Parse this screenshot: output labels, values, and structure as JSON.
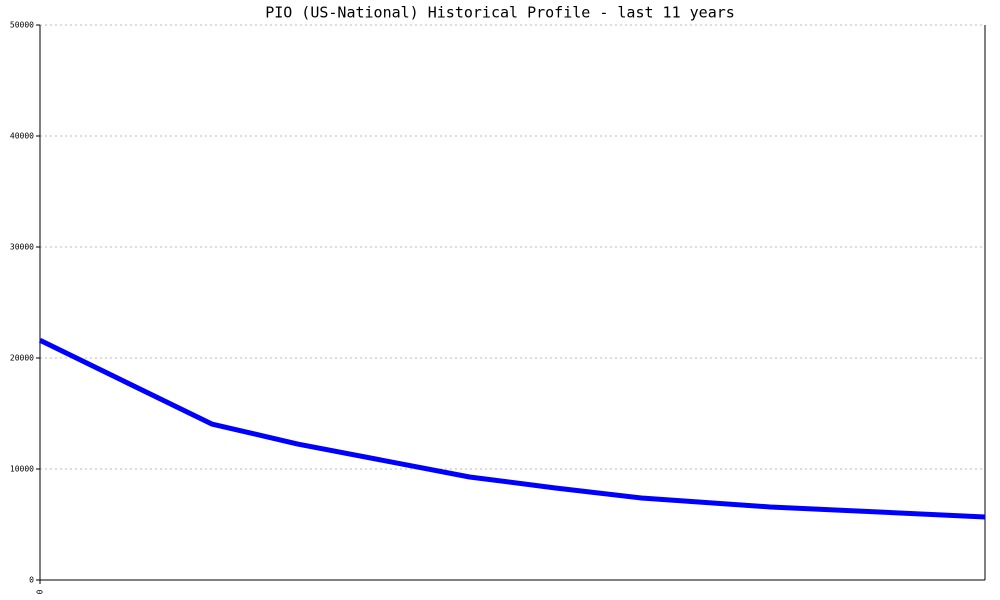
{
  "chart_data": {
    "type": "line",
    "title": "PIO (US-National) Historical Profile - last 11 years",
    "x": [
      0,
      2,
      3,
      5,
      6,
      7,
      8.5,
      11
    ],
    "series": [
      {
        "name": "PIO",
        "color": "#0000ff",
        "values": [
          21600,
          14050,
          12250,
          9280,
          8290,
          7390,
          6580,
          5680
        ]
      }
    ],
    "xlim": [
      0,
      11
    ],
    "xticks": [
      0
    ],
    "ylim": [
      0,
      50000
    ],
    "yticks": [
      0,
      10000,
      20000,
      30000,
      40000,
      50000
    ],
    "grid": true
  }
}
